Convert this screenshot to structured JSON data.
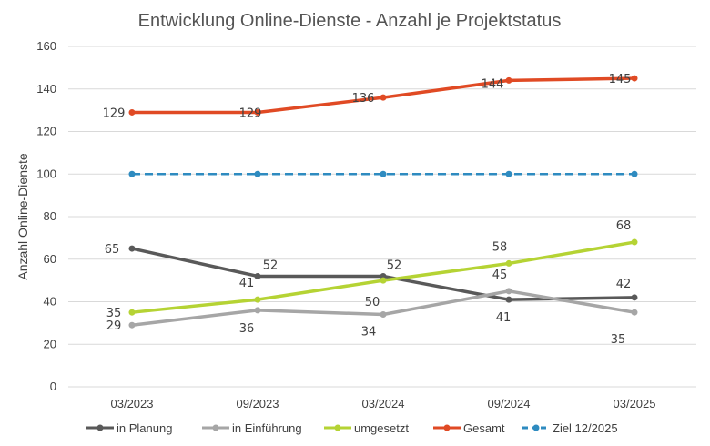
{
  "chart_data": {
    "type": "line",
    "title": "Entwicklung Online-Dienste - Anzahl je Projektstatus",
    "xlabel": "",
    "ylabel": "Anzahl Online-Dienste",
    "categories": [
      "03/2023",
      "09/2023",
      "03/2024",
      "09/2024",
      "03/2025"
    ],
    "ylim": [
      0,
      160
    ],
    "yticks": [
      0,
      20,
      40,
      60,
      80,
      100,
      120,
      140,
      160
    ],
    "grid": true,
    "legend_position": "bottom",
    "series": [
      {
        "name": "in Planung",
        "values": [
          65,
          52,
          52,
          41,
          42
        ],
        "color": "#595959",
        "dashed": false,
        "labels": true
      },
      {
        "name": "in Einführung",
        "values": [
          29,
          36,
          34,
          45,
          35
        ],
        "color": "#a6a6a6",
        "dashed": false,
        "labels": true
      },
      {
        "name": "umgesetzt",
        "values": [
          35,
          41,
          50,
          58,
          68
        ],
        "color": "#b5d334",
        "dashed": false,
        "labels": true
      },
      {
        "name": "Gesamt",
        "values": [
          129,
          129,
          136,
          144,
          145
        ],
        "color": "#e04a24",
        "dashed": false,
        "labels": true
      },
      {
        "name": "Ziel 12/2025",
        "values": [
          100,
          100,
          100,
          100,
          100
        ],
        "color": "#2e8bc0",
        "dashed": true,
        "labels": false
      }
    ]
  }
}
